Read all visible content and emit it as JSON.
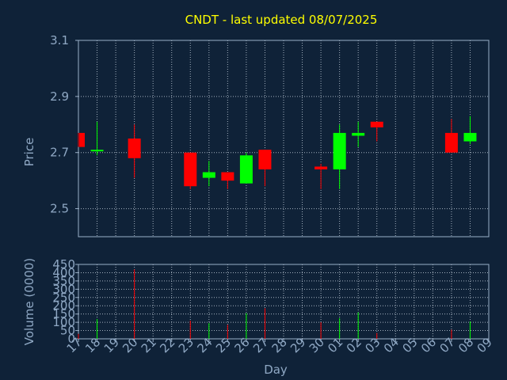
{
  "chart_data": {
    "type": "candlestick",
    "title": "CNDT - last updated 08/07/2025",
    "xlabel": "Day",
    "ylabel_price": "Price",
    "ylabel_volume": "Volume (0000)",
    "price_ylim": [
      2.4,
      3.1
    ],
    "price_ticks": [
      "2.5",
      "2.7",
      "2.9",
      "3.1"
    ],
    "volume_ylim": [
      0,
      450
    ],
    "volume_ticks": [
      "0",
      "50",
      "100",
      "150",
      "200",
      "250",
      "300",
      "350",
      "400",
      "450"
    ],
    "x_ticks": [
      "17",
      "18",
      "19",
      "20",
      "21",
      "22",
      "23",
      "24",
      "25",
      "26",
      "27",
      "28",
      "29",
      "30",
      "01",
      "02",
      "03",
      "04",
      "05",
      "06",
      "07",
      "08",
      "09"
    ],
    "grid": true,
    "colors": {
      "background": "#0f2238",
      "axis": "#9ab0c8",
      "title": "#ffff00",
      "label": "#8fa8c4",
      "up": "#00ff00",
      "down": "#ff0000"
    },
    "candles": [
      {
        "x": "17",
        "open": 2.77,
        "high": 2.77,
        "low": 2.72,
        "close": 2.72,
        "volume": 30
      },
      {
        "x": "18",
        "open": 2.71,
        "high": 2.81,
        "low": 2.69,
        "close": 2.71,
        "volume": 120
      },
      {
        "x": "20",
        "open": 2.75,
        "high": 2.8,
        "low": 2.61,
        "close": 2.68,
        "volume": 420
      },
      {
        "x": "23",
        "open": 2.7,
        "high": 2.7,
        "low": 2.57,
        "close": 2.58,
        "volume": 110
      },
      {
        "x": "24",
        "open": 2.61,
        "high": 2.67,
        "low": 2.58,
        "close": 2.63,
        "volume": 95
      },
      {
        "x": "25",
        "open": 2.63,
        "high": 2.63,
        "low": 2.57,
        "close": 2.6,
        "volume": 85
      },
      {
        "x": "26",
        "open": 2.59,
        "high": 2.7,
        "low": 2.59,
        "close": 2.69,
        "volume": 155
      },
      {
        "x": "27",
        "open": 2.71,
        "high": 2.71,
        "low": 2.58,
        "close": 2.64,
        "volume": 185
      },
      {
        "x": "30",
        "open": 2.65,
        "high": 2.66,
        "low": 2.57,
        "close": 2.64,
        "volume": 100
      },
      {
        "x": "01",
        "open": 2.64,
        "high": 2.8,
        "low": 2.57,
        "close": 2.77,
        "volume": 125
      },
      {
        "x": "02",
        "open": 2.76,
        "high": 2.81,
        "low": 2.72,
        "close": 2.77,
        "volume": 160
      },
      {
        "x": "03",
        "open": 2.81,
        "high": 2.81,
        "low": 2.74,
        "close": 2.79,
        "volume": 35
      },
      {
        "x": "07",
        "open": 2.77,
        "high": 2.82,
        "low": 2.7,
        "close": 2.7,
        "volume": 55
      },
      {
        "x": "08",
        "open": 2.74,
        "high": 2.83,
        "low": 2.73,
        "close": 2.77,
        "volume": 105
      }
    ]
  }
}
